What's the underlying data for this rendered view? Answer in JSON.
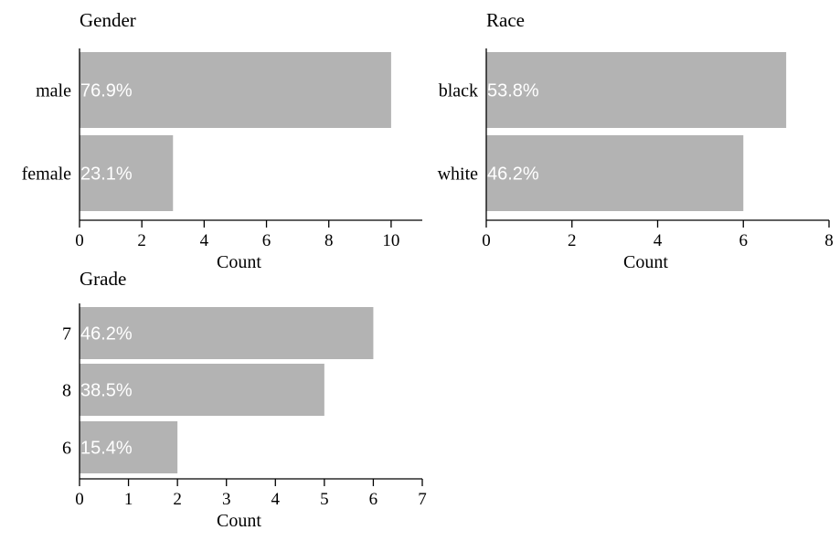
{
  "chart_data": [
    {
      "type": "bar",
      "orientation": "horizontal",
      "title": "Gender",
      "categories": [
        "male",
        "female"
      ],
      "values": [
        10,
        3
      ],
      "percent_labels": [
        "76.9%",
        "23.1%"
      ],
      "xlabel": "Count",
      "ylabel": "",
      "xlim": [
        0,
        11
      ],
      "xticks": [
        "0",
        "2",
        "4",
        "6",
        "8",
        "10"
      ],
      "bar_color": "#b3b3b3",
      "label_color": "#ffffff"
    },
    {
      "type": "bar",
      "orientation": "horizontal",
      "title": "Race",
      "categories": [
        "black",
        "white"
      ],
      "values": [
        7,
        6
      ],
      "percent_labels": [
        "53.8%",
        "46.2%"
      ],
      "xlabel": "Count",
      "ylabel": "",
      "xlim": [
        0,
        8
      ],
      "xticks": [
        "0",
        "2",
        "4",
        "6",
        "8"
      ],
      "bar_color": "#b3b3b3",
      "label_color": "#ffffff"
    },
    {
      "type": "bar",
      "orientation": "horizontal",
      "title": "Grade",
      "categories": [
        "7",
        "8",
        "6"
      ],
      "values": [
        6,
        5,
        2
      ],
      "percent_labels": [
        "46.2%",
        "38.5%",
        "15.4%"
      ],
      "xlabel": "Count",
      "ylabel": "",
      "xlim": [
        0,
        7
      ],
      "xticks": [
        "0",
        "1",
        "2",
        "3",
        "4",
        "5",
        "6",
        "7"
      ],
      "bar_color": "#b3b3b3",
      "label_color": "#ffffff"
    }
  ]
}
